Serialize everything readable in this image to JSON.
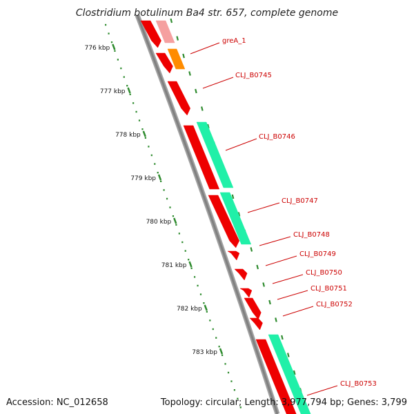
{
  "title": "Clostridium botulinum Ba4 str. 657, complete genome",
  "footer": {
    "accession": "Accession: NC_012658",
    "summary": "Topology: circular; Length: 3,977,794 bp; Genes: 3,799"
  },
  "colors": {
    "backbone": "#808080",
    "ruler": "#2e8b2e",
    "cds": "#ee0000",
    "cds_faded": "#f5a0a0",
    "rna": "#20f0a8",
    "rna_faded": "#c9f5e4",
    "highlight": "#ff8c00",
    "label": "#cc0000"
  },
  "ruler": {
    "ticks": [
      {
        "label": "776 kbp",
        "y": 776
      },
      {
        "label": "777 kbp",
        "y": 777
      },
      {
        "label": "778 kbp",
        "y": 778
      },
      {
        "label": "779 kbp",
        "y": 779
      },
      {
        "label": "780 kbp",
        "y": 780
      },
      {
        "label": "781 kbp",
        "y": 781
      },
      {
        "label": "782 kbp",
        "y": 782
      },
      {
        "label": "783 kbp",
        "y": 783
      }
    ]
  },
  "genes": [
    {
      "label": "greA_1"
    },
    {
      "label": "CLJ_B0745"
    },
    {
      "label": "CLJ_B0746"
    },
    {
      "label": "CLJ_B0747"
    },
    {
      "label": "CLJ_B0748"
    },
    {
      "label": "CLJ_B0749"
    },
    {
      "label": "CLJ_B0750"
    },
    {
      "label": "CLJ_B0751"
    },
    {
      "label": "CLJ_B0752"
    },
    {
      "label": "CLJ_B0753"
    }
  ]
}
